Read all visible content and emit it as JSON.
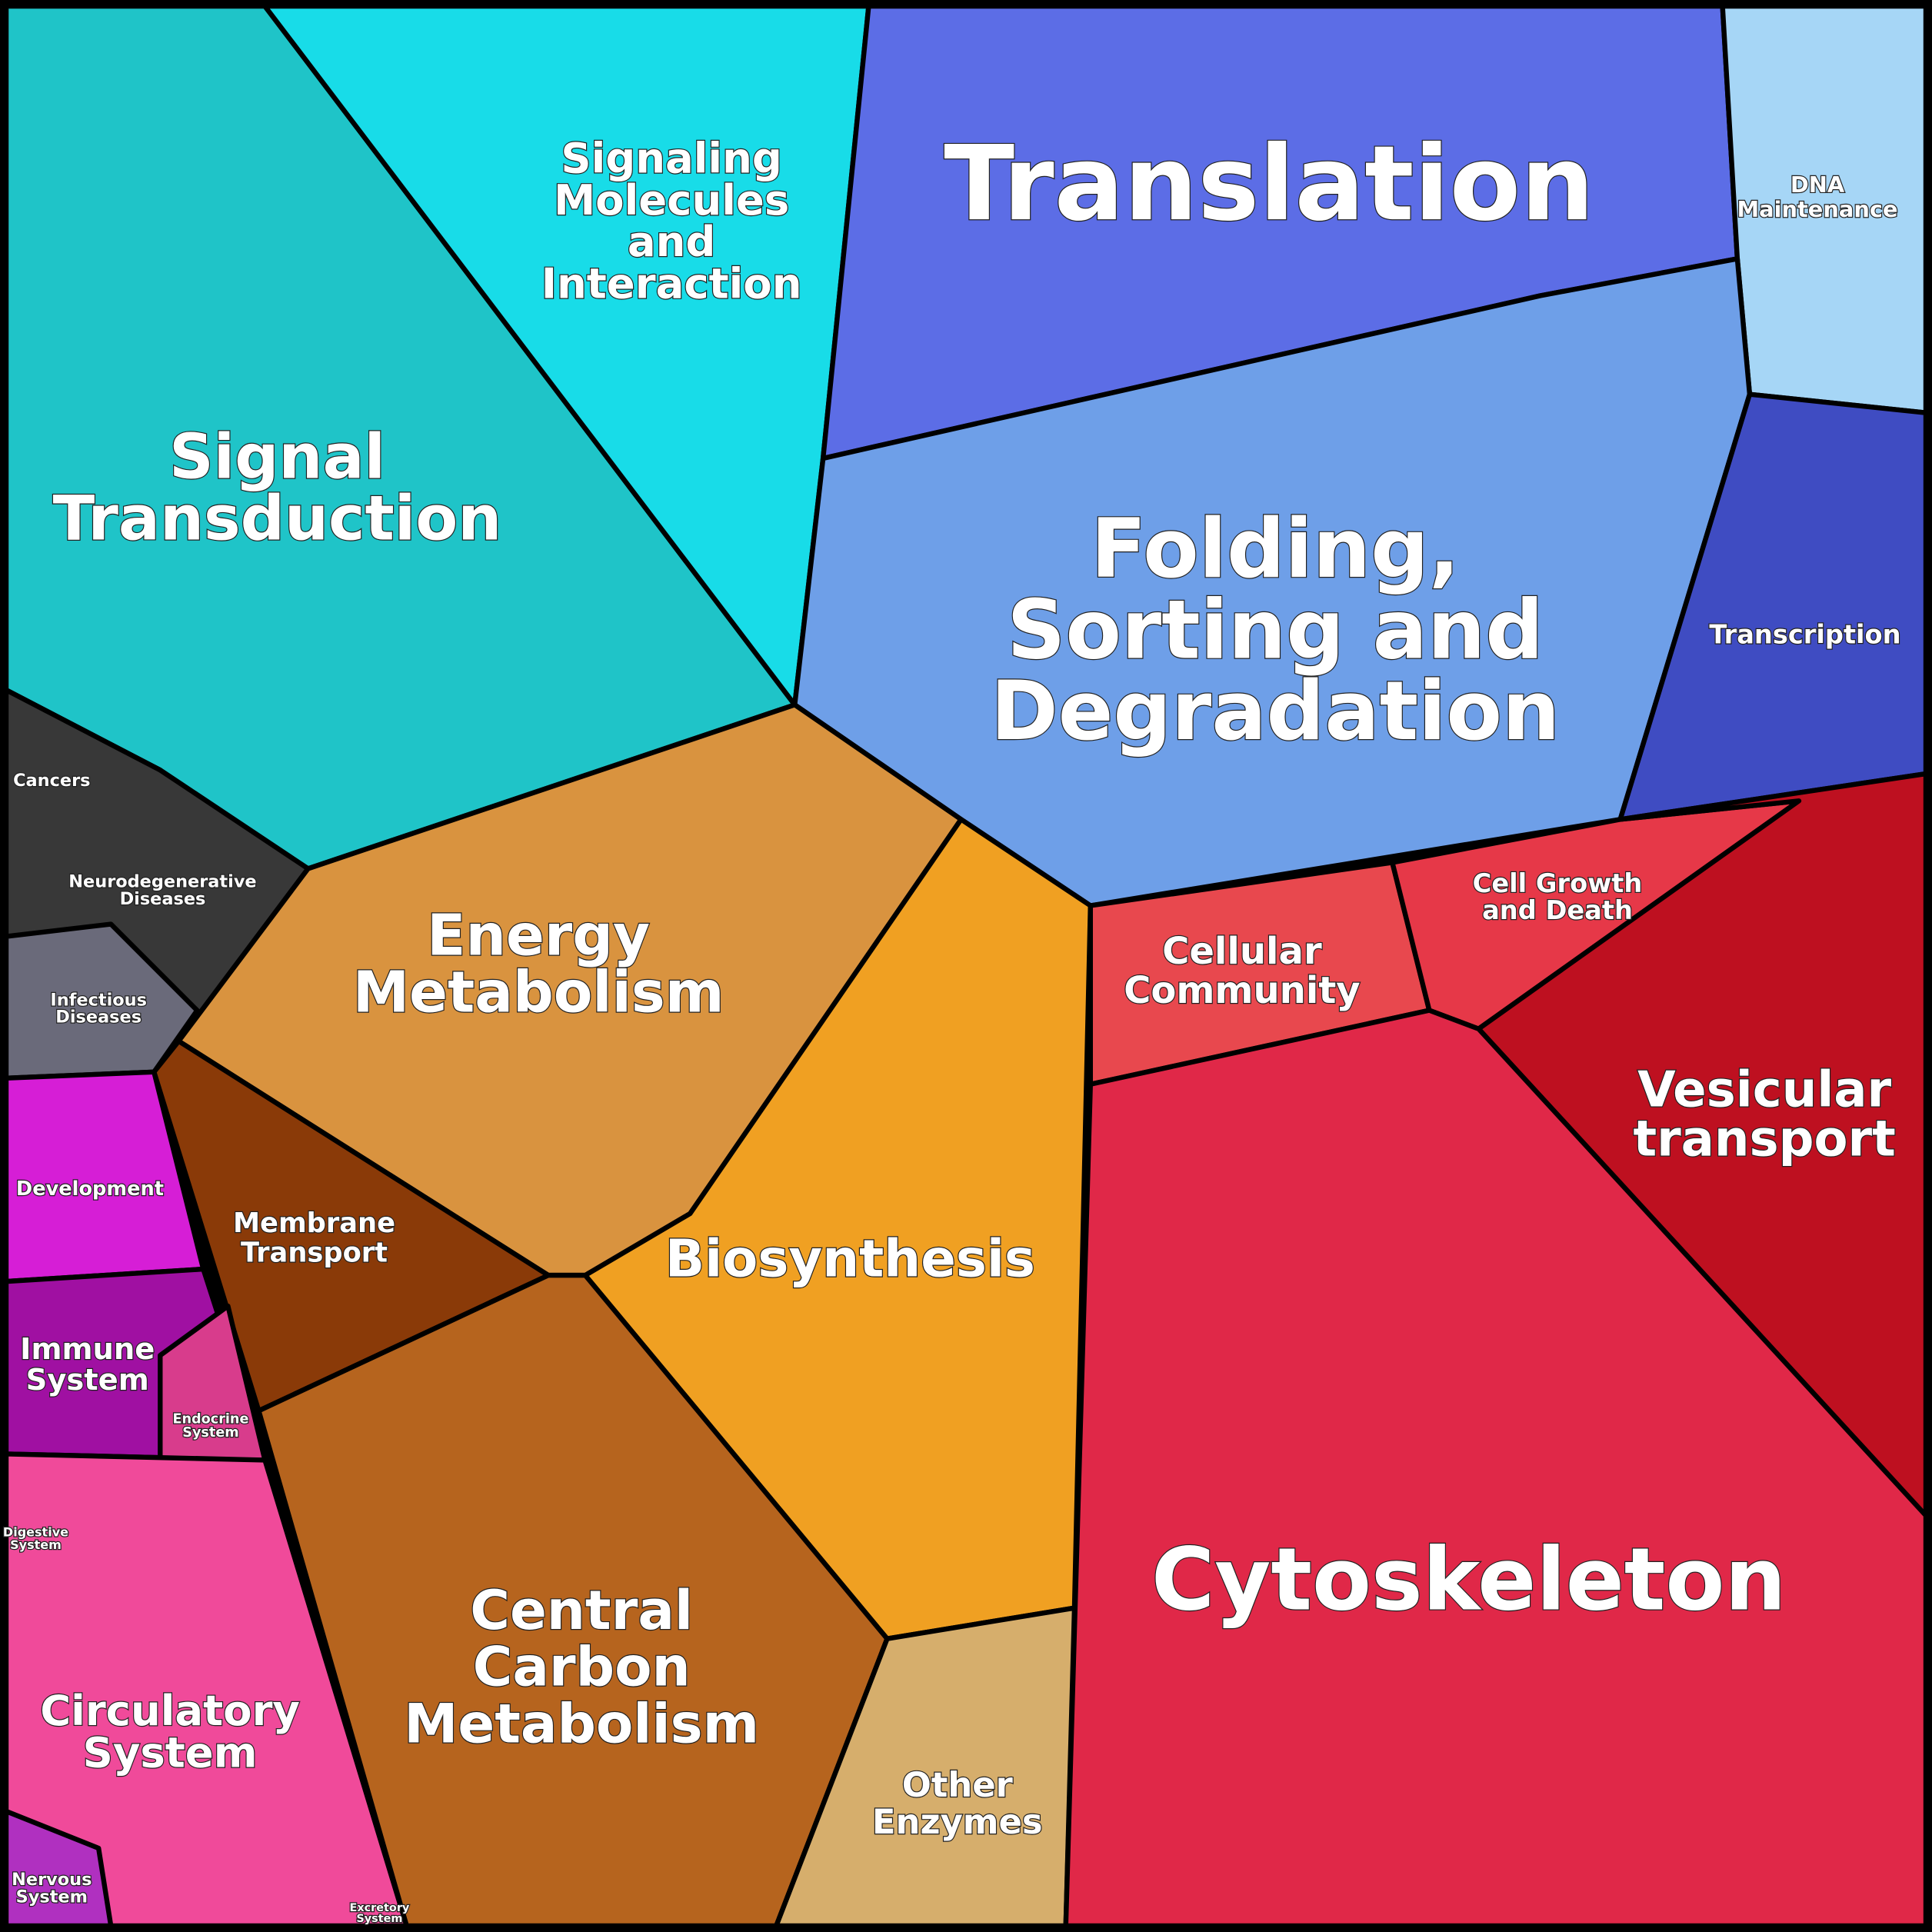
{
  "regions": [
    {
      "label": [
        "Signal",
        "Transduction"
      ]
    },
    {
      "label": [
        "Signaling",
        "Molecules",
        "and",
        "Interaction"
      ]
    },
    {
      "label": [
        "Translation"
      ]
    },
    {
      "label": [
        "DNA",
        "Maintenance"
      ]
    },
    {
      "label": [
        "Folding,",
        "Sorting and",
        "Degradation"
      ]
    },
    {
      "label": [
        "Transcription"
      ]
    },
    {
      "label": [
        "Cancers"
      ]
    },
    {
      "label": [
        "Neurodegenerative",
        "Diseases"
      ]
    },
    {
      "label": [
        "Infectious",
        "Diseases"
      ]
    },
    {
      "label": [
        "Energy",
        "Metabolism"
      ]
    },
    {
      "label": [
        "Membrane",
        "Transport"
      ]
    },
    {
      "label": [
        "Biosynthesis"
      ]
    },
    {
      "label": [
        "Central",
        "Carbon",
        "Metabolism"
      ]
    },
    {
      "label": [
        "Other",
        "Enzymes"
      ]
    },
    {
      "label": [
        "Cellular",
        "Community"
      ]
    },
    {
      "label": [
        "Cell Growth",
        "and Death"
      ]
    },
    {
      "label": [
        "Vesicular",
        "transport"
      ]
    },
    {
      "label": [
        "Cytoskeleton"
      ]
    },
    {
      "label": [
        "Development"
      ]
    },
    {
      "label": [
        "Immune",
        "System"
      ]
    },
    {
      "label": [
        "Endocrine",
        "System"
      ]
    },
    {
      "label": [
        "Digestive",
        "System"
      ]
    },
    {
      "label": [
        "Circulatory",
        "System"
      ]
    },
    {
      "label": [
        "Nervous",
        "System"
      ]
    },
    {
      "label": [
        "Excretory",
        "System"
      ]
    }
  ]
}
